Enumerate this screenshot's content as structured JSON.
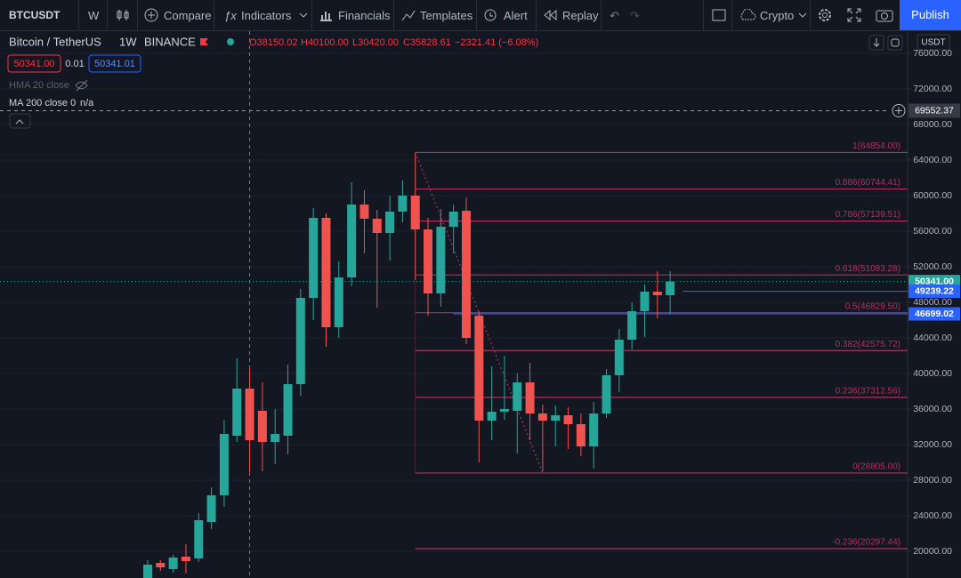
{
  "toolbar": {
    "symbol": "BTCUSDT",
    "interval": "W",
    "compare": "Compare",
    "indicators": "Indicators",
    "financials": "Financials",
    "templates": "Templates",
    "alert": "Alert",
    "replay": "Replay",
    "market": "Crypto",
    "publish": "Publish"
  },
  "legend": {
    "name": "Bitcoin / TetherUS",
    "timeframe": "1W",
    "exchange": "BINANCE",
    "ohlc": [
      "O38150.02",
      "H40100.00",
      "L30420.00",
      "C35828.61"
    ],
    "change": "−2321.41 (−6.08%)",
    "sell": "50341.00",
    "spread": "0.01",
    "buy": "50341.01",
    "indicators": [
      "HMA 20 close",
      "MA 200 close 0"
    ],
    "ma_value": "n/a"
  },
  "chart_data": {
    "type": "candlestick",
    "currency": "USDT",
    "open": [
      17000,
      18700,
      18000,
      19400,
      19200,
      23300,
      26300,
      33000,
      38300,
      35800,
      32300,
      33000,
      38800,
      48500,
      57500,
      45200,
      50800,
      59000,
      57400,
      55800,
      58200,
      60000,
      56200,
      49000,
      56500,
      58300,
      46500,
      34700,
      35700,
      35800,
      39000,
      35500,
      34700,
      35300,
      34300,
      31800,
      35500,
      39800,
      43800,
      47000,
      49200,
      48800
    ],
    "high": [
      19000,
      19000,
      19600,
      20800,
      24300,
      27200,
      34800,
      41700,
      40600,
      39000,
      36000,
      41000,
      49500,
      58600,
      58000,
      52600,
      61500,
      60600,
      58400,
      60000,
      61700,
      64800,
      57500,
      58500,
      59000,
      59800,
      47000,
      40800,
      42000,
      40000,
      41200,
      36500,
      36400,
      36200,
      35500,
      36800,
      40500,
      45000,
      48000,
      50000,
      51500,
      51500
    ],
    "low": [
      16800,
      17800,
      17600,
      17500,
      18800,
      22500,
      25000,
      32300,
      28900,
      29000,
      29800,
      30900,
      37500,
      46000,
      43000,
      44000,
      49800,
      53500,
      47400,
      52700,
      57000,
      50500,
      46500,
      47500,
      53500,
      43300,
      30000,
      32500,
      34800,
      31000,
      32500,
      29000,
      31800,
      31500,
      30700,
      29300,
      35000,
      37900,
      42700,
      44100,
      46200,
      46700
    ],
    "close": [
      18500,
      18200,
      19300,
      18900,
      23500,
      26300,
      33200,
      38300,
      32500,
      32300,
      33200,
      38800,
      48500,
      57500,
      45200,
      50800,
      59000,
      57400,
      55800,
      58200,
      60000,
      56200,
      49000,
      56500,
      58200,
      44000,
      34700,
      35700,
      36000,
      39000,
      35500,
      34700,
      35300,
      34300,
      31800,
      35500,
      39800,
      43800,
      47000,
      49200,
      48800,
      50341
    ],
    "up_color": "#26a69a",
    "down_color": "#ef5350",
    "ylim": [
      17000,
      78000
    ],
    "yticks": [
      {
        "value": 20000,
        "label": "20000.00"
      },
      {
        "value": 24000,
        "label": "24000.00"
      },
      {
        "value": 28000,
        "label": "28000.00"
      },
      {
        "value": 32000,
        "label": "32000.00"
      },
      {
        "value": 36000,
        "label": "36000.00"
      },
      {
        "value": 40000,
        "label": "40000.00"
      },
      {
        "value": 44000,
        "label": "44000.00"
      },
      {
        "value": 48000,
        "label": "48000.00"
      },
      {
        "value": 52000,
        "label": "52000.00"
      },
      {
        "value": 56000,
        "label": "56000.00"
      },
      {
        "value": 60000,
        "label": "60000.00"
      },
      {
        "value": 64000,
        "label": "64000.00"
      },
      {
        "value": 68000,
        "label": "68000.00"
      },
      {
        "value": 72000,
        "label": "72000.00"
      },
      {
        "value": 76000,
        "label": "76000.00"
      }
    ],
    "grid": true,
    "fib": {
      "color": "#b22f5b",
      "levels": [
        {
          "value": 64854,
          "label": "1(64854.00)"
        },
        {
          "value": 60744.41,
          "label": "0.886(60744.41)"
        },
        {
          "value": 57139.51,
          "label": "0.786(57139.51)"
        },
        {
          "value": 51083.28,
          "label": "0.618(51083.28)"
        },
        {
          "value": 46829.5,
          "label": "0.5(46829.50)"
        },
        {
          "value": 42575.72,
          "label": "0.382(42575.72)"
        },
        {
          "value": 37312.56,
          "label": "0.236(37312.56)"
        },
        {
          "value": 28805,
          "label": "0(28805.00)"
        },
        {
          "value": 20297.44,
          "label": "-0.236(20297.44)"
        }
      ]
    },
    "price_lines": [
      {
        "value": 50341,
        "label": "50341.00",
        "color": "#26a69a"
      },
      {
        "value": 49239.22,
        "label": "49239.22",
        "color": "#2962ff"
      },
      {
        "value": 46699.02,
        "label": "46699.02",
        "color": "#2962ff"
      }
    ],
    "crosshair": {
      "value": 69552.37,
      "label": "69552.37"
    }
  }
}
